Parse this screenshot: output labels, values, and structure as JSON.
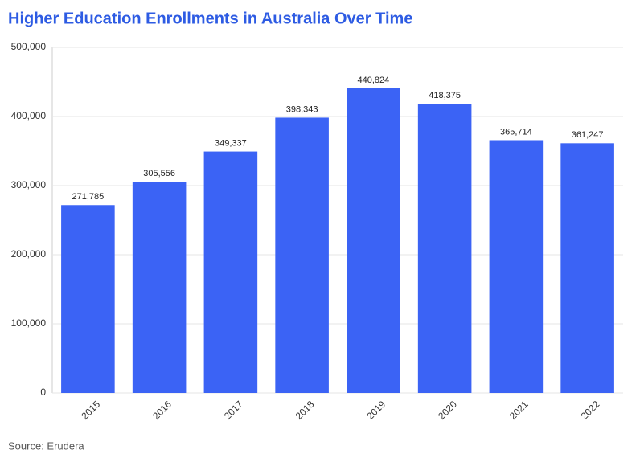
{
  "chart_data": {
    "type": "bar",
    "title": "Higher Education Enrollments in Australia Over Time",
    "categories": [
      "2015",
      "2016",
      "2017",
      "2018",
      "2019",
      "2020",
      "2021",
      "2022"
    ],
    "values": [
      271785,
      305556,
      349337,
      398343,
      440824,
      418375,
      365714,
      361247
    ],
    "value_labels": [
      "271,785",
      "305,556",
      "349,337",
      "398,343",
      "440,824",
      "418,375",
      "365,714",
      "361,247"
    ],
    "color": "#3b63f5",
    "ylim": [
      0,
      500000
    ],
    "yticks": [
      0,
      {
        "value": 100000,
        "label": "100,000"
      },
      {
        "value": 200000,
        "label": "200,000"
      },
      {
        "value": 300000,
        "label": "300,000"
      },
      {
        "value": 400000,
        "label": "400,000"
      },
      {
        "value": 500000,
        "label": "500,000"
      }
    ],
    "grid": true,
    "source": "Source: Erudera"
  }
}
